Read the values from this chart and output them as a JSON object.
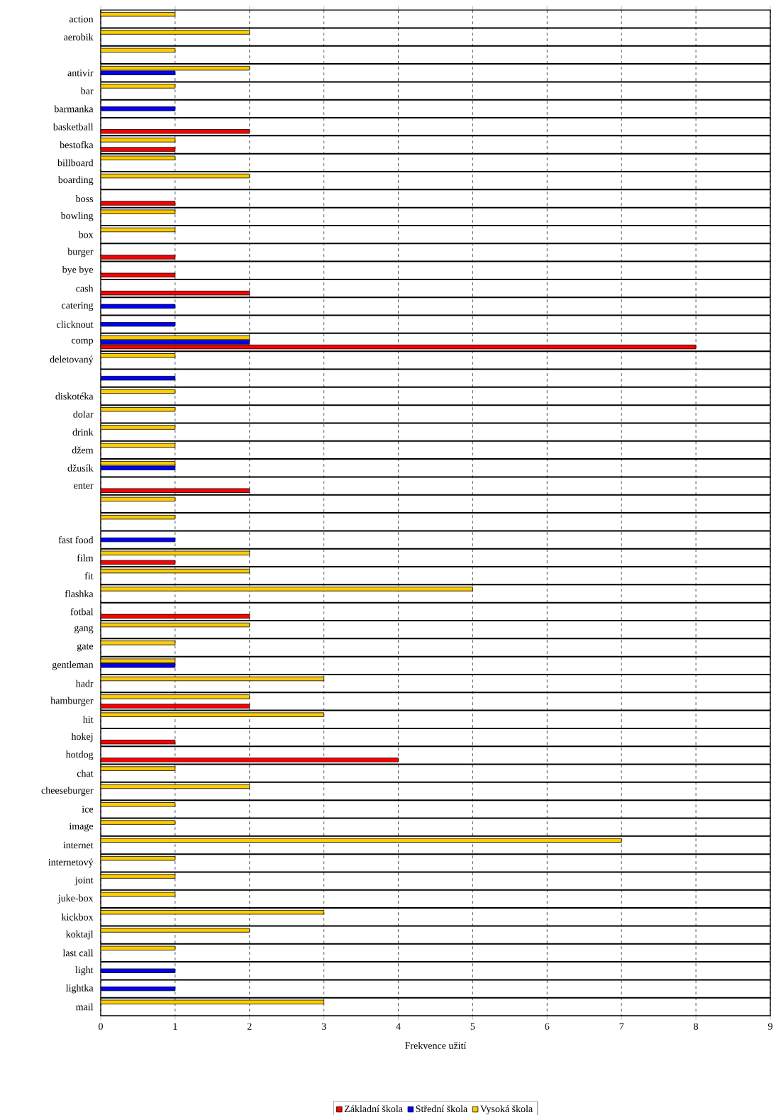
{
  "chart_data": {
    "type": "bar",
    "orientation": "horizontal",
    "xlabel": "Frekvence užití",
    "xlim": [
      0,
      9
    ],
    "xticks": [
      0,
      1,
      2,
      3,
      4,
      5,
      6,
      7,
      8,
      9
    ],
    "grid": "x",
    "legend": "bottom",
    "categories": [
      "action",
      "aerobik",
      null,
      "antivir",
      "bar",
      "barmanka",
      "basketball",
      "bestofka",
      "billboard",
      "boarding",
      "boss",
      "bowling",
      "box",
      "burger",
      "bye bye",
      "cash",
      "catering",
      "clicknout",
      "comp",
      "deletovaný",
      null,
      "diskotéka",
      "dolar",
      "drink",
      "džem",
      "džusík",
      "enter",
      null,
      null,
      "fast food",
      "film",
      "fit",
      "flashka",
      "fotbal",
      "gang",
      "gate",
      "gentleman",
      "hadr",
      "hamburger",
      "hit",
      "hokej",
      "hotdog",
      "chat",
      "cheeseburger",
      "ice",
      "image",
      "internet",
      "internetový",
      "joint",
      "juke-box",
      "kickbox",
      "koktajl",
      "last call",
      "light",
      "lightka",
      "mail"
    ],
    "series": [
      {
        "name": "Základní škola",
        "color": "#ff0000",
        "values": [
          null,
          null,
          null,
          null,
          null,
          null,
          2,
          1,
          null,
          null,
          1,
          null,
          null,
          1,
          1,
          2,
          null,
          null,
          8,
          null,
          null,
          null,
          null,
          null,
          null,
          null,
          2,
          null,
          null,
          null,
          1,
          null,
          null,
          2,
          null,
          null,
          null,
          null,
          2,
          null,
          1,
          4,
          null,
          null,
          null,
          null,
          null,
          null,
          null,
          null,
          null,
          null,
          null,
          null,
          null,
          null
        ]
      },
      {
        "name": "Střední škola",
        "color": "#0000ff",
        "values": [
          null,
          null,
          null,
          1,
          null,
          1,
          null,
          null,
          null,
          null,
          null,
          null,
          null,
          null,
          null,
          null,
          1,
          1,
          2,
          null,
          1,
          null,
          null,
          null,
          null,
          1,
          null,
          null,
          null,
          1,
          null,
          null,
          null,
          null,
          null,
          null,
          1,
          null,
          null,
          null,
          null,
          null,
          null,
          null,
          null,
          null,
          null,
          null,
          null,
          null,
          null,
          null,
          null,
          1,
          1,
          null
        ]
      },
      {
        "name": "Vysoká škola",
        "color": "#ffcc00",
        "values": [
          1,
          2,
          1,
          2,
          1,
          null,
          null,
          1,
          1,
          2,
          null,
          1,
          1,
          null,
          null,
          null,
          null,
          null,
          2,
          1,
          null,
          1,
          1,
          1,
          1,
          1,
          null,
          1,
          1,
          null,
          2,
          2,
          5,
          null,
          2,
          1,
          1,
          3,
          2,
          3,
          null,
          null,
          1,
          2,
          1,
          1,
          7,
          1,
          1,
          1,
          3,
          2,
          1,
          null,
          null,
          3
        ]
      }
    ]
  }
}
